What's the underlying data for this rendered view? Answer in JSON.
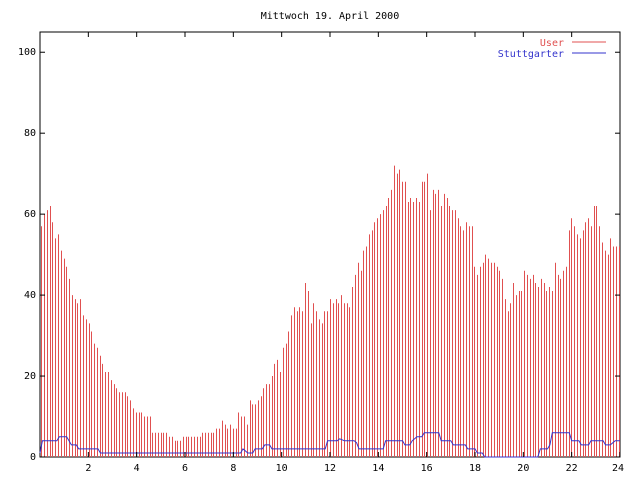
{
  "chart_data": {
    "type": "bar",
    "title": "Mittwoch 19. April 2000",
    "xlabel": "",
    "ylabel": "",
    "xlim": [
      0,
      24
    ],
    "ylim": [
      0,
      105
    ],
    "x_ticks": [
      2,
      4,
      6,
      8,
      10,
      12,
      14,
      16,
      18,
      20,
      22,
      24
    ],
    "y_ticks": [
      0,
      20,
      40,
      60,
      80,
      100
    ],
    "grid": false,
    "legend_position": "top-right",
    "series": [
      {
        "name": "User",
        "type": "bar",
        "color": "#e05050",
        "values": [
          57,
          60,
          61,
          62,
          58,
          54,
          55,
          51,
          49,
          47,
          44,
          40,
          39,
          38,
          39,
          35,
          34,
          33,
          31,
          28,
          27,
          25,
          23,
          21,
          21,
          19,
          18,
          17,
          16,
          16,
          16,
          15,
          14,
          12,
          11,
          11,
          11,
          10,
          10,
          10,
          6,
          6,
          6,
          6,
          6,
          6,
          5,
          5,
          4,
          4,
          4,
          5,
          5,
          5,
          5,
          5,
          5,
          5,
          6,
          6,
          6,
          6,
          6,
          7,
          7,
          9,
          8,
          7,
          8,
          7,
          7,
          11,
          10,
          10,
          8,
          14,
          13,
          13,
          14,
          15,
          17,
          18,
          18,
          20,
          23,
          24,
          21,
          27,
          28,
          31,
          35,
          37,
          36,
          37,
          36,
          43,
          41,
          33,
          38,
          36,
          34,
          33,
          36,
          36,
          39,
          38,
          39,
          38,
          40,
          38,
          38,
          37,
          42,
          45,
          48,
          46,
          51,
          52,
          55,
          56,
          58,
          59,
          60,
          61,
          62,
          64,
          66,
          72,
          70,
          71,
          68,
          68,
          63,
          64,
          63,
          64,
          63,
          68,
          68,
          70,
          61,
          66,
          65,
          66,
          62,
          65,
          64,
          62,
          61,
          61,
          59,
          57,
          56,
          58,
          57,
          57,
          47,
          45,
          47,
          48,
          50,
          49,
          48,
          48,
          47,
          46,
          44,
          39,
          36,
          38,
          43,
          40,
          41,
          41,
          46,
          45,
          44,
          45,
          43,
          42,
          44,
          43,
          41,
          42,
          41,
          48,
          45,
          44,
          46,
          47,
          56,
          59,
          57,
          55,
          54,
          56,
          58,
          59,
          57,
          62,
          62,
          57,
          53,
          51,
          50,
          54,
          52,
          52,
          52
        ]
      },
      {
        "name": "Stuttgarter",
        "type": "line",
        "color": "#3333cc",
        "values": [
          [
            0,
            1
          ],
          [
            0.1,
            4
          ],
          [
            0.7,
            4
          ],
          [
            0.8,
            5
          ],
          [
            1.1,
            5
          ],
          [
            1.2,
            4
          ],
          [
            1.3,
            3
          ],
          [
            1.5,
            3
          ],
          [
            1.6,
            2
          ],
          [
            2.4,
            2
          ],
          [
            2.5,
            1
          ],
          [
            8.3,
            1
          ],
          [
            8.4,
            2
          ],
          [
            8.6,
            1
          ],
          [
            8.8,
            1
          ],
          [
            8.9,
            2
          ],
          [
            9.2,
            2
          ],
          [
            9.3,
            3
          ],
          [
            9.5,
            3
          ],
          [
            9.6,
            2
          ],
          [
            11.8,
            2
          ],
          [
            11.9,
            4
          ],
          [
            12.3,
            4
          ],
          [
            12.4,
            4.5
          ],
          [
            12.6,
            4
          ],
          [
            13.0,
            4
          ],
          [
            13.1,
            3.5
          ],
          [
            13.2,
            2
          ],
          [
            14.2,
            2
          ],
          [
            14.3,
            4
          ],
          [
            14.6,
            4
          ],
          [
            15.0,
            4
          ],
          [
            15.1,
            3
          ],
          [
            15.3,
            3
          ],
          [
            15.4,
            4
          ],
          [
            15.6,
            5
          ],
          [
            15.8,
            5
          ],
          [
            15.9,
            6
          ],
          [
            16.5,
            6
          ],
          [
            16.6,
            4
          ],
          [
            17.0,
            4
          ],
          [
            17.1,
            3
          ],
          [
            17.6,
            3
          ],
          [
            17.7,
            2
          ],
          [
            18.0,
            2
          ],
          [
            18.1,
            1
          ],
          [
            18.3,
            1
          ],
          [
            18.4,
            0
          ],
          [
            20.6,
            0
          ],
          [
            20.7,
            2
          ],
          [
            21.0,
            2
          ],
          [
            21.1,
            3
          ],
          [
            21.2,
            6
          ],
          [
            21.9,
            6
          ],
          [
            22.0,
            4
          ],
          [
            22.3,
            4
          ],
          [
            22.4,
            3
          ],
          [
            22.7,
            3
          ],
          [
            22.8,
            4
          ],
          [
            23.3,
            4
          ],
          [
            23.4,
            3
          ],
          [
            23.6,
            3
          ],
          [
            23.8,
            4
          ],
          [
            24.0,
            4
          ]
        ]
      }
    ]
  }
}
